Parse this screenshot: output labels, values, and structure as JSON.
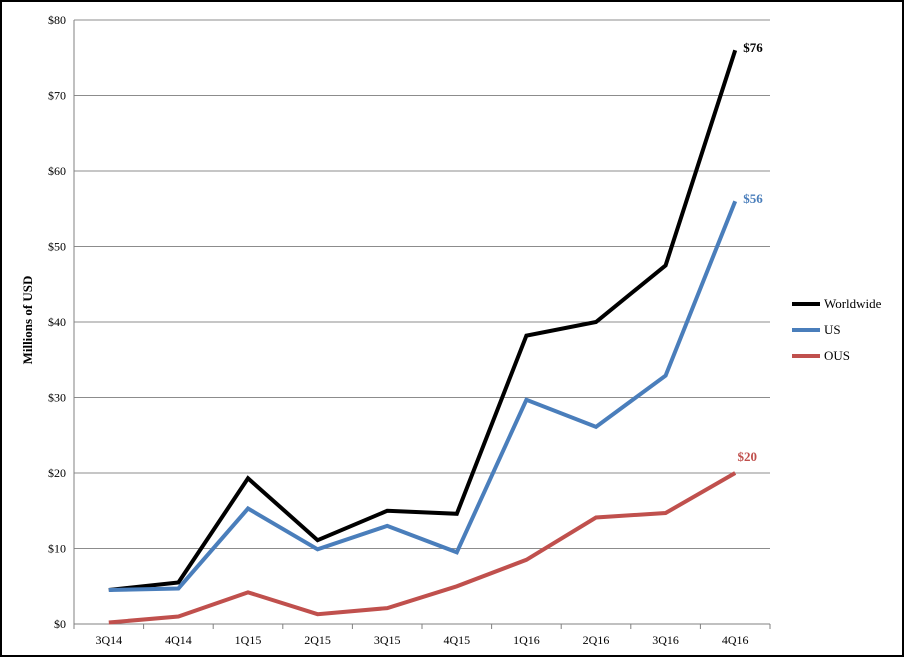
{
  "chart_data": {
    "type": "line",
    "categories": [
      "3Q14",
      "4Q14",
      "1Q15",
      "2Q15",
      "3Q15",
      "4Q15",
      "1Q16",
      "2Q16",
      "3Q16",
      "4Q16"
    ],
    "ylabel": "Millions of USD",
    "ylim": [
      0,
      80
    ],
    "yticks": [
      0,
      10,
      20,
      30,
      40,
      50,
      60,
      70,
      80
    ],
    "ytick_labels": [
      "$0",
      "$10",
      "$20",
      "$30",
      "$40",
      "$50",
      "$60",
      "$70",
      "$80"
    ],
    "grid": true,
    "legend_position": "right",
    "series": [
      {
        "name": "Worldwide",
        "color": "#000000",
        "values": [
          4.5,
          5.5,
          19.3,
          11.1,
          15.0,
          14.6,
          38.2,
          40.0,
          47.5,
          76.0
        ],
        "end_label": "$76"
      },
      {
        "name": "US",
        "color": "#4a7ebb",
        "values": [
          4.5,
          4.7,
          15.3,
          9.9,
          13.0,
          9.5,
          29.7,
          26.1,
          32.9,
          56.0
        ],
        "end_label": "$56"
      },
      {
        "name": "OUS",
        "color": "#c0504d",
        "values": [
          0.2,
          1.0,
          4.2,
          1.3,
          2.1,
          5.0,
          8.5,
          14.1,
          14.7,
          20.0
        ],
        "end_label": "$20"
      }
    ]
  }
}
